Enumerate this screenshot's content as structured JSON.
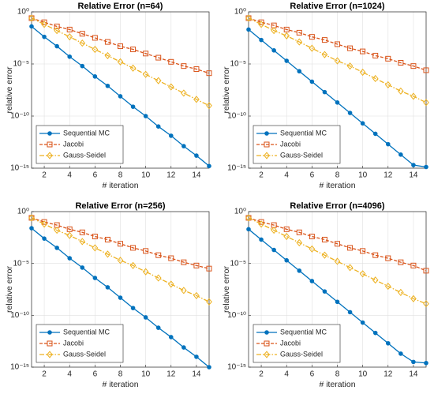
{
  "chart_data": [
    {
      "type": "line",
      "title": "Relative Error (n=64)",
      "xlabel": "# iteration",
      "ylabel": "relative error",
      "x": [
        1,
        2,
        3,
        4,
        5,
        6,
        7,
        8,
        9,
        10,
        11,
        12,
        13,
        14,
        15
      ],
      "xlim": [
        1,
        15
      ],
      "xticks": [
        2,
        4,
        6,
        8,
        10,
        12,
        14
      ],
      "ylim": [
        1e-15,
        1
      ],
      "yticks": [
        {
          "value": 1,
          "label": "10⁰"
        },
        {
          "value": 1e-05,
          "label": "10⁻⁵"
        },
        {
          "value": 1e-10,
          "label": "10⁻¹⁰"
        },
        {
          "value": 1e-15,
          "label": "10⁻¹⁵"
        }
      ],
      "ylog": true,
      "grid": true,
      "legend": "lower left",
      "series": [
        {
          "name": "Sequential MC",
          "color": "#0072bd",
          "values": [
            0.04,
            0.004,
            0.0005,
            5e-05,
            6.3e-06,
            6.3e-07,
            7.9e-08,
            7.9e-09,
            7.9e-10,
            1e-10,
            1e-11,
            1.3e-12,
            1.3e-13,
            1.6e-14,
            1.6e-15
          ]
        },
        {
          "name": "Jacobi",
          "color": "#d95319",
          "values": [
            0.25,
            0.1,
            0.04,
            0.02,
            0.0079,
            0.0032,
            0.0013,
            0.0005,
            0.00025,
            0.0001,
            4e-05,
            1.6e-05,
            6.3e-06,
            3.2e-06,
            1.3e-06
          ]
        },
        {
          "name": "Gauss-Seidel",
          "color": "#edb120",
          "values": [
            0.25,
            0.063,
            0.016,
            0.004,
            0.001,
            0.00025,
            6.3e-05,
            1.6e-05,
            4e-06,
            1e-06,
            2.5e-07,
            6.3e-08,
            1.6e-08,
            4e-09,
            1e-09
          ]
        }
      ]
    },
    {
      "type": "line",
      "title": "Relative Error (n=1024)",
      "xlabel": "# iteration",
      "ylabel": "relative error",
      "x": [
        1,
        2,
        3,
        4,
        5,
        6,
        7,
        8,
        9,
        10,
        11,
        12,
        13,
        14,
        15
      ],
      "xlim": [
        1,
        15
      ],
      "xticks": [
        2,
        4,
        6,
        8,
        10,
        12,
        14
      ],
      "ylim": [
        1e-15,
        1
      ],
      "yticks": [
        {
          "value": 1,
          "label": "10⁰"
        },
        {
          "value": 1e-05,
          "label": "10⁻⁵"
        },
        {
          "value": 1e-10,
          "label": "10⁻¹⁰"
        },
        {
          "value": 1e-15,
          "label": "10⁻¹⁵"
        }
      ],
      "ylog": true,
      "grid": true,
      "legend": "lower left",
      "series": [
        {
          "name": "Sequential MC",
          "color": "#0072bd",
          "values": [
            0.02,
            0.002,
            0.0002,
            2e-05,
            2e-06,
            2e-07,
            2e-08,
            2e-09,
            2e-10,
            2e-11,
            2e-12,
            2e-13,
            2e-14,
            2e-15,
            1.3e-15
          ]
        },
        {
          "name": "Jacobi",
          "color": "#d95319",
          "values": [
            0.25,
            0.1,
            0.05,
            0.02,
            0.01,
            0.004,
            0.002,
            0.00079,
            0.00032,
            0.00016,
            6.3e-05,
            3.2e-05,
            1.3e-05,
            6.3e-06,
            2.5e-06
          ]
        },
        {
          "name": "Gauss-Seidel",
          "color": "#edb120",
          "values": [
            0.25,
            0.063,
            0.016,
            0.005,
            0.0013,
            0.00032,
            7.9e-05,
            2e-05,
            6.3e-06,
            1.6e-06,
            4e-07,
            1e-07,
            2.5e-08,
            7.9e-09,
            2e-09
          ]
        }
      ]
    },
    {
      "type": "line",
      "title": "Relative Error (n=256)",
      "xlabel": "# iteration",
      "ylabel": "relative error",
      "x": [
        1,
        2,
        3,
        4,
        5,
        6,
        7,
        8,
        9,
        10,
        11,
        12,
        13,
        14,
        15
      ],
      "xlim": [
        1,
        15
      ],
      "xticks": [
        2,
        4,
        6,
        8,
        10,
        12,
        14
      ],
      "ylim": [
        1e-15,
        1
      ],
      "yticks": [
        {
          "value": 1,
          "label": "10⁰"
        },
        {
          "value": 1e-05,
          "label": "10⁻⁵"
        },
        {
          "value": 1e-10,
          "label": "10⁻¹⁰"
        },
        {
          "value": 1e-15,
          "label": "10⁻¹⁵"
        }
      ],
      "ylog": true,
      "grid": true,
      "legend": "lower left",
      "series": [
        {
          "name": "Sequential MC",
          "color": "#0072bd",
          "values": [
            0.025,
            0.0025,
            0.00032,
            3.2e-05,
            4e-06,
            4e-07,
            5e-08,
            5e-09,
            5e-10,
            6.3e-11,
            6.3e-12,
            7.9e-13,
            7.9e-14,
            1e-14,
            1e-15
          ]
        },
        {
          "name": "Jacobi",
          "color": "#d95319",
          "values": [
            0.25,
            0.1,
            0.05,
            0.02,
            0.01,
            0.004,
            0.002,
            0.00079,
            0.00032,
            0.00016,
            6.3e-05,
            3.2e-05,
            1.3e-05,
            6.3e-06,
            3.2e-06
          ]
        },
        {
          "name": "Gauss-Seidel",
          "color": "#edb120",
          "values": [
            0.25,
            0.063,
            0.016,
            0.005,
            0.0013,
            0.00032,
            7.9e-05,
            2e-05,
            6.3e-06,
            1.6e-06,
            4e-07,
            1e-07,
            2.5e-08,
            7.9e-09,
            2e-09
          ]
        }
      ]
    },
    {
      "type": "line",
      "title": "Relative Error (n=4096)",
      "xlabel": "# iteration",
      "ylabel": "relative error",
      "x": [
        1,
        2,
        3,
        4,
        5,
        6,
        7,
        8,
        9,
        10,
        11,
        12,
        13,
        14,
        15
      ],
      "xlim": [
        1,
        15
      ],
      "xticks": [
        2,
        4,
        6,
        8,
        10,
        12,
        14
      ],
      "ylim": [
        1e-15,
        1
      ],
      "yticks": [
        {
          "value": 1,
          "label": "10⁰"
        },
        {
          "value": 1e-05,
          "label": "10⁻⁵"
        },
        {
          "value": 1e-10,
          "label": "10⁻¹⁰"
        },
        {
          "value": 1e-15,
          "label": "10⁻¹⁵"
        }
      ],
      "ylog": true,
      "grid": true,
      "legend": "lower left",
      "series": [
        {
          "name": "Sequential MC",
          "color": "#0072bd",
          "values": [
            0.02,
            0.002,
            0.0002,
            2e-05,
            2e-06,
            2e-07,
            2e-08,
            2e-09,
            2e-10,
            2e-11,
            2e-12,
            2e-13,
            2e-14,
            3.2e-15,
            2.5e-15
          ]
        },
        {
          "name": "Jacobi",
          "color": "#d95319",
          "values": [
            0.25,
            0.1,
            0.05,
            0.02,
            0.01,
            0.004,
            0.002,
            0.00079,
            0.00032,
            0.00016,
            6.3e-05,
            3.2e-05,
            1.3e-05,
            6.3e-06,
            2e-06
          ]
        },
        {
          "name": "Gauss-Seidel",
          "color": "#edb120",
          "values": [
            0.25,
            0.063,
            0.016,
            0.004,
            0.001,
            0.00025,
            6.3e-05,
            1.6e-05,
            4e-06,
            1e-06,
            2.5e-07,
            6.3e-08,
            1.6e-08,
            4e-09,
            1.3e-09
          ]
        }
      ]
    }
  ]
}
